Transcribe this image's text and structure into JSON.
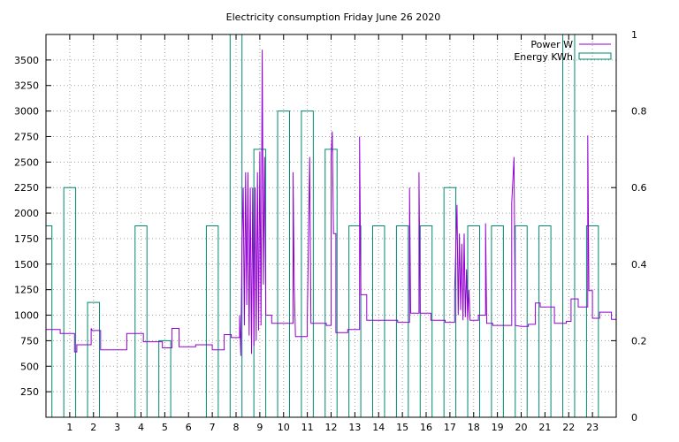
{
  "chart_data": {
    "type": "line",
    "title": "Electricity consumption Friday June 26 2020",
    "xlabel": "",
    "ylabel": "",
    "xlim": [
      0,
      24
    ],
    "ylim": [
      0,
      3750
    ],
    "y2lim": [
      0,
      1
    ],
    "grid": true,
    "legend_position": "top-right",
    "x_ticks": [
      1,
      2,
      3,
      4,
      5,
      6,
      7,
      8,
      9,
      10,
      11,
      12,
      13,
      14,
      15,
      16,
      17,
      18,
      19,
      20,
      21,
      22,
      23
    ],
    "y_ticks": [
      250,
      500,
      750,
      1000,
      1250,
      1500,
      1750,
      2000,
      2250,
      2500,
      2750,
      3000,
      3250,
      3500
    ],
    "y2_ticks": [
      0,
      0.2,
      0.4,
      0.6,
      0.8,
      1
    ],
    "series": [
      {
        "name": "Power W",
        "axis": "y",
        "color": "#9400d3",
        "points": [
          [
            0,
            860
          ],
          [
            0.6,
            860
          ],
          [
            0.6,
            820
          ],
          [
            1.2,
            820
          ],
          [
            1.2,
            640
          ],
          [
            1.3,
            640
          ],
          [
            1.3,
            710
          ],
          [
            1.9,
            710
          ],
          [
            1.9,
            870
          ],
          [
            1.95,
            850
          ],
          [
            2.3,
            850
          ],
          [
            2.3,
            660
          ],
          [
            3.4,
            660
          ],
          [
            3.4,
            820
          ],
          [
            4.1,
            820
          ],
          [
            4.1,
            740
          ],
          [
            4.9,
            740
          ],
          [
            4.9,
            680
          ],
          [
            5.3,
            680
          ],
          [
            5.3,
            870
          ],
          [
            5.6,
            870
          ],
          [
            5.6,
            690
          ],
          [
            6.3,
            690
          ],
          [
            6.3,
            710
          ],
          [
            7.0,
            710
          ],
          [
            7.0,
            660
          ],
          [
            7.5,
            660
          ],
          [
            7.5,
            810
          ],
          [
            7.8,
            810
          ],
          [
            7.8,
            780
          ],
          [
            8.15,
            780
          ],
          [
            8.15,
            1000
          ],
          [
            8.2,
            600
          ],
          [
            8.25,
            1700
          ],
          [
            8.3,
            2250
          ],
          [
            8.35,
            900
          ],
          [
            8.4,
            2400
          ],
          [
            8.45,
            1100
          ],
          [
            8.5,
            2400
          ],
          [
            8.55,
            800
          ],
          [
            8.6,
            2250
          ],
          [
            8.65,
            620
          ],
          [
            8.7,
            2250
          ],
          [
            8.75,
            700
          ],
          [
            8.8,
            2250
          ],
          [
            8.85,
            750
          ],
          [
            8.9,
            2400
          ],
          [
            8.95,
            850
          ],
          [
            9.0,
            2600
          ],
          [
            9.05,
            900
          ],
          [
            9.1,
            3600
          ],
          [
            9.15,
            1300
          ],
          [
            9.2,
            2550
          ],
          [
            9.25,
            1000
          ],
          [
            9.5,
            1000
          ],
          [
            9.5,
            920
          ],
          [
            10.4,
            920
          ],
          [
            10.4,
            2400
          ],
          [
            10.45,
            1300
          ],
          [
            10.5,
            790
          ],
          [
            11.0,
            790
          ],
          [
            11.0,
            980
          ],
          [
            11.1,
            2550
          ],
          [
            11.15,
            920
          ],
          [
            11.8,
            920
          ],
          [
            11.8,
            900
          ],
          [
            12.0,
            900
          ],
          [
            12.0,
            2550
          ],
          [
            12.05,
            2800
          ],
          [
            12.1,
            1800
          ],
          [
            12.2,
            1800
          ],
          [
            12.2,
            830
          ],
          [
            12.7,
            830
          ],
          [
            12.7,
            860
          ],
          [
            13.2,
            860
          ],
          [
            13.2,
            2750
          ],
          [
            13.25,
            1200
          ],
          [
            13.5,
            1200
          ],
          [
            13.5,
            950
          ],
          [
            14.8,
            950
          ],
          [
            14.8,
            930
          ],
          [
            15.3,
            930
          ],
          [
            15.3,
            2250
          ],
          [
            15.35,
            1020
          ],
          [
            15.7,
            1020
          ],
          [
            15.7,
            2400
          ],
          [
            15.75,
            1020
          ],
          [
            16.2,
            1020
          ],
          [
            16.2,
            950
          ],
          [
            16.8,
            950
          ],
          [
            16.8,
            930
          ],
          [
            17.2,
            930
          ],
          [
            17.2,
            1250
          ],
          [
            17.3,
            2080
          ],
          [
            17.35,
            1000
          ],
          [
            17.4,
            1800
          ],
          [
            17.45,
            1050
          ],
          [
            17.5,
            1700
          ],
          [
            17.55,
            950
          ],
          [
            17.6,
            1800
          ],
          [
            17.65,
            980
          ],
          [
            17.7,
            1450
          ],
          [
            17.75,
            950
          ],
          [
            17.8,
            1250
          ],
          [
            17.85,
            950
          ],
          [
            18.2,
            950
          ],
          [
            18.2,
            1000
          ],
          [
            18.5,
            1000
          ],
          [
            18.5,
            1900
          ],
          [
            18.55,
            920
          ],
          [
            18.8,
            920
          ],
          [
            18.8,
            900
          ],
          [
            19.6,
            900
          ],
          [
            19.6,
            2100
          ],
          [
            19.7,
            2550
          ],
          [
            19.75,
            900
          ],
          [
            20.0,
            890
          ],
          [
            20.3,
            890
          ],
          [
            20.3,
            910
          ],
          [
            20.6,
            910
          ],
          [
            20.6,
            1120
          ],
          [
            20.8,
            1120
          ],
          [
            20.8,
            1080
          ],
          [
            21.4,
            1080
          ],
          [
            21.4,
            920
          ],
          [
            21.9,
            920
          ],
          [
            21.9,
            940
          ],
          [
            22.1,
            940
          ],
          [
            22.1,
            1160
          ],
          [
            22.4,
            1160
          ],
          [
            22.4,
            1080
          ],
          [
            22.8,
            1080
          ],
          [
            22.8,
            2760
          ],
          [
            22.85,
            1240
          ],
          [
            23.0,
            1240
          ],
          [
            23.0,
            970
          ],
          [
            23.3,
            970
          ],
          [
            23.3,
            1030
          ],
          [
            23.8,
            1030
          ],
          [
            23.8,
            960
          ],
          [
            24.0,
            960
          ]
        ]
      },
      {
        "name": "Energy KWh",
        "axis": "y2",
        "color": "#00896f",
        "bars": [
          [
            0,
            0.25,
            0.5
          ],
          [
            0.75,
            1.25,
            0.6
          ],
          [
            1.75,
            2.25,
            0.3
          ],
          [
            3.75,
            4.25,
            0.5
          ],
          [
            4.75,
            5.25,
            0.2
          ],
          [
            6.75,
            7.25,
            0.5
          ],
          [
            7.75,
            8.25,
            1.0
          ],
          [
            8.75,
            9.25,
            0.7
          ],
          [
            9.75,
            10.25,
            0.8
          ],
          [
            10.75,
            11.25,
            0.8
          ],
          [
            11.75,
            12.25,
            0.7
          ],
          [
            12.75,
            13.25,
            0.5
          ],
          [
            13.75,
            14.25,
            0.5
          ],
          [
            14.75,
            15.25,
            0.5
          ],
          [
            15.75,
            16.25,
            0.5
          ],
          [
            16.75,
            17.25,
            0.6
          ],
          [
            17.75,
            18.25,
            0.5
          ],
          [
            18.75,
            19.25,
            0.5
          ],
          [
            19.75,
            20.25,
            0.5
          ],
          [
            20.75,
            21.25,
            0.5
          ],
          [
            21.75,
            22.25,
            1.0
          ],
          [
            22.75,
            23.25,
            0.5
          ]
        ]
      }
    ]
  }
}
